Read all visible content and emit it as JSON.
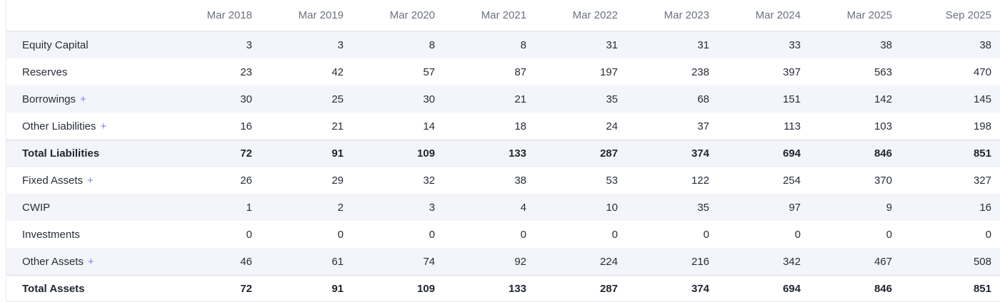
{
  "colors": {
    "accent_plus": "#7d81f0",
    "stripe_row": "#f4f5fa",
    "left_edge_border": "#e9ebf1"
  },
  "table": {
    "expand_symbol": "+",
    "columns": [
      "Mar 2018",
      "Mar 2019",
      "Mar 2020",
      "Mar 2021",
      "Mar 2022",
      "Mar 2023",
      "Mar 2024",
      "Mar 2025",
      "Sep 2025"
    ],
    "rows": [
      {
        "label": "Equity Capital",
        "expandable": false,
        "strong": false,
        "values": [
          3,
          3,
          8,
          8,
          31,
          31,
          33,
          38,
          38
        ]
      },
      {
        "label": "Reserves",
        "expandable": false,
        "strong": false,
        "values": [
          23,
          42,
          57,
          87,
          197,
          238,
          397,
          563,
          470
        ]
      },
      {
        "label": "Borrowings",
        "expandable": true,
        "strong": false,
        "values": [
          30,
          25,
          30,
          21,
          35,
          68,
          151,
          142,
          145
        ]
      },
      {
        "label": "Other Liabilities",
        "expandable": true,
        "strong": false,
        "values": [
          16,
          21,
          14,
          18,
          24,
          37,
          113,
          103,
          198
        ]
      },
      {
        "label": "Total Liabilities",
        "expandable": false,
        "strong": true,
        "values": [
          72,
          91,
          109,
          133,
          287,
          374,
          694,
          846,
          851
        ]
      },
      {
        "label": "Fixed Assets",
        "expandable": true,
        "strong": false,
        "values": [
          26,
          29,
          32,
          38,
          53,
          122,
          254,
          370,
          327
        ]
      },
      {
        "label": "CWIP",
        "expandable": false,
        "strong": false,
        "values": [
          1,
          2,
          3,
          4,
          10,
          35,
          97,
          9,
          16
        ]
      },
      {
        "label": "Investments",
        "expandable": false,
        "strong": false,
        "values": [
          0,
          0,
          0,
          0,
          0,
          0,
          0,
          0,
          0
        ]
      },
      {
        "label": "Other Assets",
        "expandable": true,
        "strong": false,
        "values": [
          46,
          61,
          74,
          92,
          224,
          216,
          342,
          467,
          508
        ]
      },
      {
        "label": "Total Assets",
        "expandable": false,
        "strong": true,
        "values": [
          72,
          91,
          109,
          133,
          287,
          374,
          694,
          846,
          851
        ]
      }
    ]
  }
}
